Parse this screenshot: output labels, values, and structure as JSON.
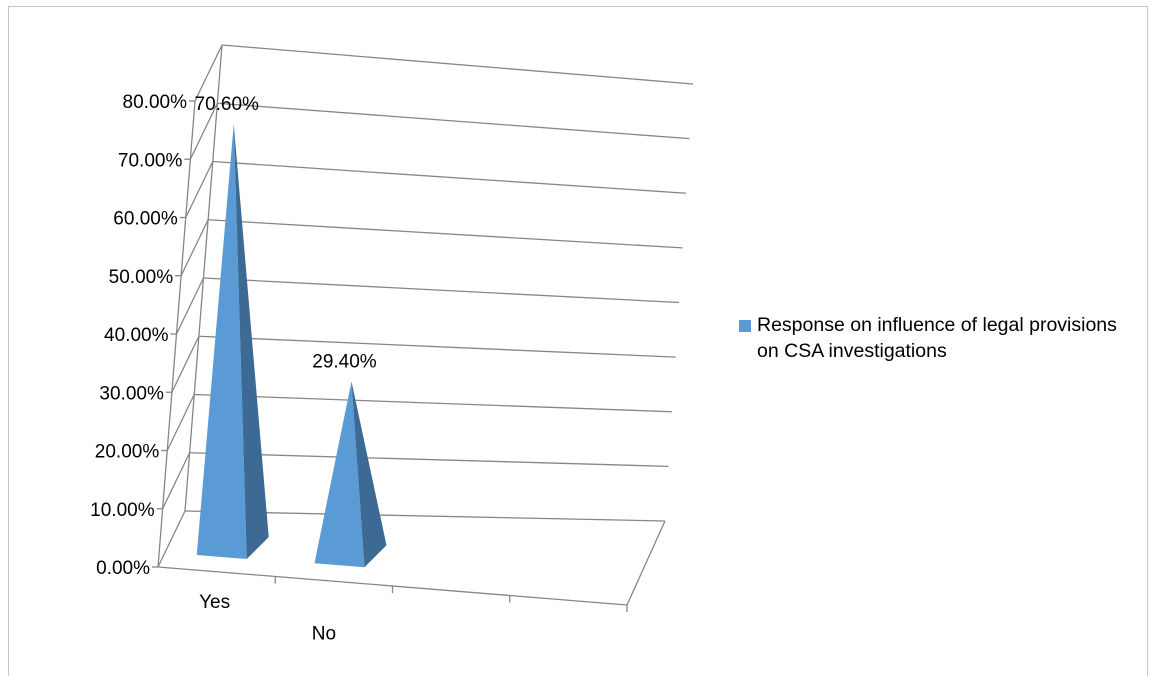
{
  "chart_data": {
    "type": "bar",
    "style": "3d-pyramid",
    "categories": [
      "Yes",
      "No"
    ],
    "series": [
      {
        "name": "Response on influence of legal provisions on CSA investigations",
        "values": [
          70.6,
          29.4
        ],
        "data_labels": [
          "70.60%",
          "29.40%"
        ]
      }
    ],
    "ylim": [
      0,
      80
    ],
    "ytick_labels": [
      "0.00%",
      "10.00%",
      "20.00%",
      "30.00%",
      "40.00%",
      "50.00%",
      "60.00%",
      "70.00%",
      "80.00%"
    ],
    "grid": true,
    "legend": "right",
    "colors": {
      "front": "#5b9bd5",
      "side": "#3d6a94",
      "grid": "#868686",
      "axis": "#868686"
    }
  }
}
